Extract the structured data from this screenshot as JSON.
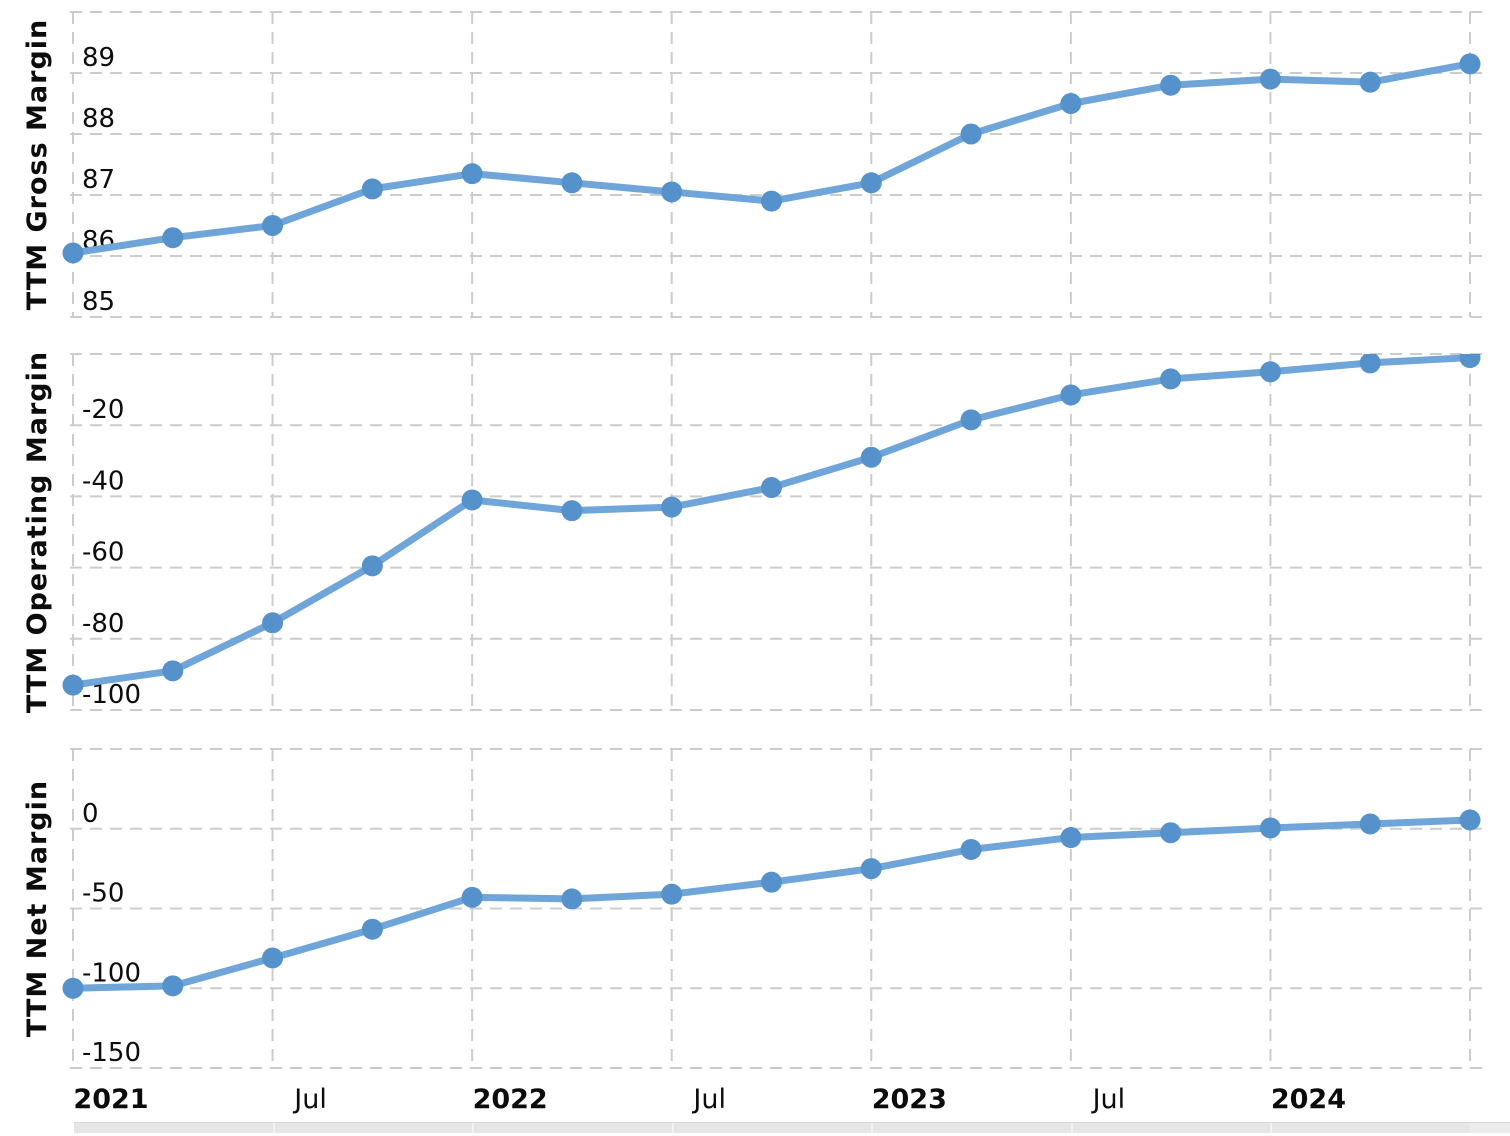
{
  "page": {
    "background": "#ffffff",
    "description": "Three stacked quarterly TTM margin line charts (gross, operating, net) with shared time axis and range-slider track below"
  },
  "colors": {
    "line": "#6fa5d8",
    "dot": "#5592cb",
    "grid": "#cccccc",
    "text": "#0c0c0c",
    "slider_track": "#e6e6e6",
    "slider_divider": "#f2f2f2"
  },
  "x_axis": {
    "tick_labels": [
      {
        "text": "2021",
        "bold": true,
        "grid_index": 0
      },
      {
        "text": "Jul",
        "bold": false,
        "grid_index": 2
      },
      {
        "text": "2022",
        "bold": true,
        "grid_index": 4
      },
      {
        "text": "Jul",
        "bold": false,
        "grid_index": 6
      },
      {
        "text": "2023",
        "bold": true,
        "grid_index": 8
      },
      {
        "text": "Jul",
        "bold": false,
        "grid_index": 10
      },
      {
        "text": "2024",
        "bold": true,
        "grid_index": 12
      }
    ]
  },
  "chart_data": [
    {
      "type": "line",
      "title": "TTM Gross Margin",
      "ylabel": "TTM Gross Margin",
      "x": [
        "2021-01",
        "2021-04",
        "2021-07",
        "2021-10",
        "2022-01",
        "2022-04",
        "2022-07",
        "2022-10",
        "2023-01",
        "2023-04",
        "2023-07",
        "2023-10",
        "2024-01",
        "2024-04",
        "2024-07"
      ],
      "values": [
        86.05,
        86.3,
        86.5,
        87.1,
        87.35,
        87.2,
        87.05,
        86.9,
        87.2,
        88.0,
        88.5,
        88.8,
        88.9,
        88.85,
        89.15
      ],
      "ylim": [
        85,
        90
      ],
      "ytick_step": 1,
      "yticks": [
        "89",
        "88",
        "87",
        "86",
        "85"
      ],
      "grid": "dashed",
      "legend": "none"
    },
    {
      "type": "line",
      "title": "TTM Operating Margin",
      "ylabel": "TTM Operating Margin",
      "x": [
        "2021-01",
        "2021-04",
        "2021-07",
        "2021-10",
        "2022-01",
        "2022-04",
        "2022-07",
        "2022-10",
        "2023-01",
        "2023-04",
        "2023-07",
        "2023-10",
        "2024-01",
        "2024-04",
        "2024-07"
      ],
      "values": [
        -93,
        -89,
        -75.5,
        -59.5,
        -41,
        -44,
        -43,
        -37.5,
        -29,
        -18.5,
        -11.5,
        -7,
        -5,
        -2.5,
        -1
      ],
      "ylim": [
        -100,
        0
      ],
      "ytick_step": 20,
      "yticks": [
        "-20",
        "-40",
        "-60",
        "-80",
        "-100"
      ],
      "grid": "dashed",
      "legend": "none"
    },
    {
      "type": "line",
      "title": "TTM Net Margin",
      "ylabel": "TTM Net Margin",
      "x": [
        "2021-01",
        "2021-04",
        "2021-07",
        "2021-10",
        "2022-01",
        "2022-04",
        "2022-07",
        "2022-10",
        "2023-01",
        "2023-04",
        "2023-07",
        "2023-10",
        "2024-01",
        "2024-04",
        "2024-07"
      ],
      "values": [
        -100,
        -98.5,
        -81,
        -63,
        -43,
        -44,
        -41,
        -33.5,
        -25,
        -13,
        -5.5,
        -2.5,
        0.5,
        3,
        5.5
      ],
      "ylim": [
        -150,
        50
      ],
      "ytick_step": 50,
      "yticks": [
        "0",
        "-50",
        "-100",
        "-150"
      ],
      "grid": "dashed",
      "legend": "none"
    }
  ]
}
